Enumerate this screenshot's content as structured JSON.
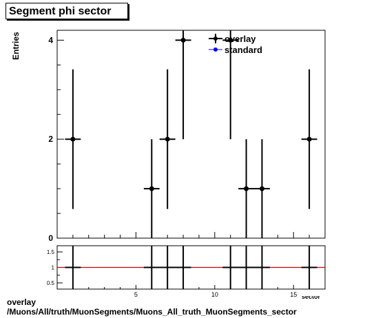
{
  "chart_data": {
    "type": "scatter",
    "title": "Segment phi sector",
    "ylabel": "Entries",
    "xlabel": "sector",
    "xlim": [
      0,
      17
    ],
    "ylim": [
      0,
      4.2
    ],
    "x_ticks": [
      5,
      10,
      15
    ],
    "y_ticks": [
      0,
      2,
      4
    ],
    "legend": {
      "placement": "top-right",
      "entries": [
        {
          "label": "overlay",
          "color": "#000000"
        },
        {
          "label": "standard",
          "color": "#0000ff"
        }
      ]
    },
    "series": [
      {
        "name": "overlay",
        "color": "#000000",
        "x": [
          1,
          6,
          7,
          8,
          11,
          12,
          13,
          16
        ],
        "y": [
          2,
          1,
          2,
          4,
          4,
          1,
          1,
          2
        ],
        "yerr": [
          1.41,
          1.0,
          1.41,
          2.0,
          2.0,
          1.0,
          1.0,
          1.41
        ]
      },
      {
        "name": "standard",
        "color": "#0000ff",
        "x": [
          1,
          6,
          7,
          8,
          11,
          12,
          13,
          16
        ],
        "y": [
          2,
          1,
          2,
          4,
          4,
          1,
          1,
          2
        ]
      }
    ],
    "ratio": {
      "ylim": [
        0.3,
        1.7
      ],
      "y_ticks": [
        0.5,
        1,
        1.5
      ],
      "value": 1,
      "line_color": "#cc0000"
    }
  },
  "footer": {
    "line1": "overlay",
    "line2": "/Muons/All/truth/MuonSegments/Muons_All_truth_MuonSegments_sector"
  }
}
